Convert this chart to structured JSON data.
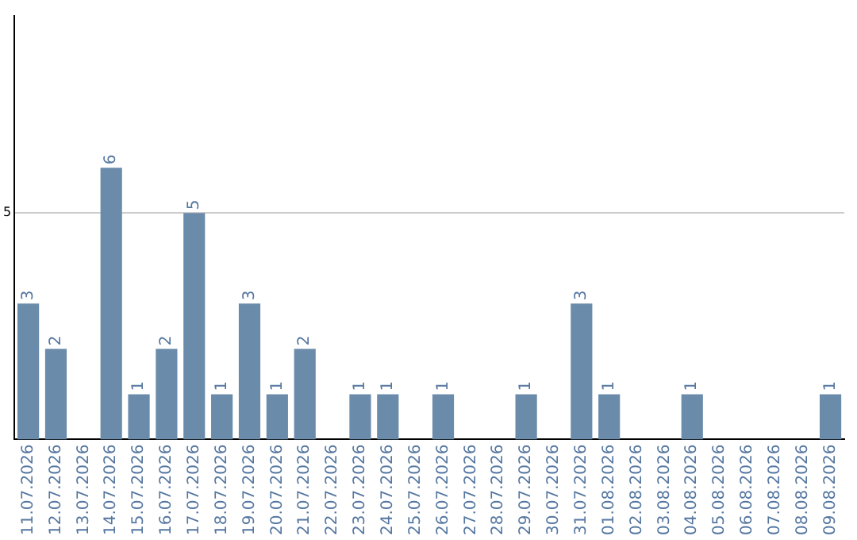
{
  "chart_data": {
    "type": "bar",
    "categories": [
      "11.07.2026",
      "12.07.2026",
      "13.07.2026",
      "14.07.2026",
      "15.07.2026",
      "16.07.2026",
      "17.07.2026",
      "18.07.2026",
      "19.07.2026",
      "20.07.2026",
      "21.07.2026",
      "22.07.2026",
      "23.07.2026",
      "24.07.2026",
      "25.07.2026",
      "26.07.2026",
      "27.07.2026",
      "28.07.2026",
      "29.07.2026",
      "30.07.2026",
      "31.07.2026",
      "01.08.2026",
      "02.08.2026",
      "03.08.2026",
      "04.08.2026",
      "05.08.2026",
      "06.08.2026",
      "07.08.2026",
      "08.08.2026",
      "09.08.2026"
    ],
    "values": [
      3,
      2,
      0,
      6,
      1,
      2,
      5,
      1,
      3,
      1,
      2,
      0,
      1,
      1,
      0,
      1,
      0,
      0,
      1,
      0,
      3,
      1,
      0,
      0,
      1,
      0,
      0,
      0,
      0,
      1
    ],
    "value_labels": [
      "3",
      "2",
      null,
      "6",
      "1",
      "2",
      "5",
      "1",
      "3",
      "1",
      "2",
      null,
      "1",
      "1",
      null,
      "1",
      null,
      null,
      "1",
      null,
      "3",
      "1",
      null,
      null,
      "1",
      null,
      null,
      null,
      null,
      "1"
    ],
    "color": "#6b8bab",
    "ylim": [
      0,
      9.35
    ],
    "yticks": [
      5
    ],
    "grid": "y",
    "legend": false
  }
}
